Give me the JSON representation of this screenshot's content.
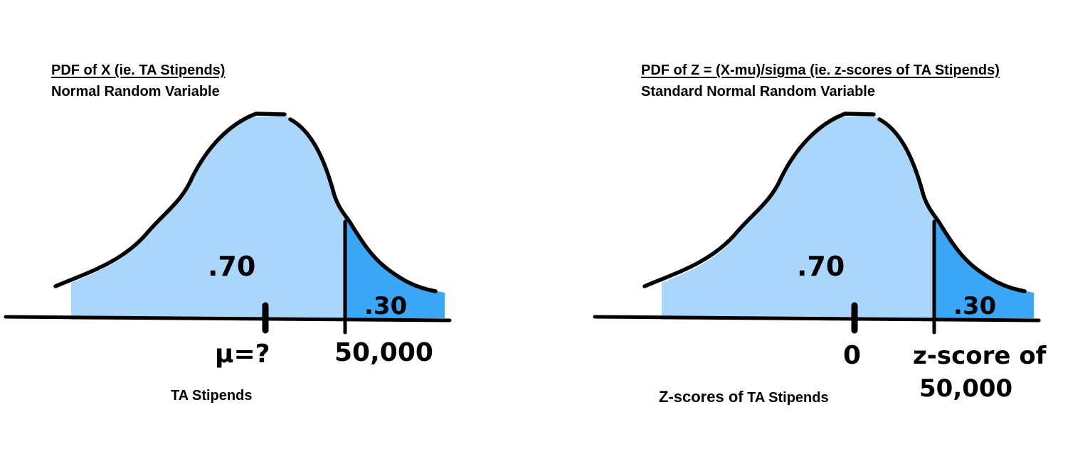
{
  "left_panel": {
    "title": "PDF of X (ie. TA Stipends)",
    "subtitle": "Normal Random Variable",
    "caption": "TA Stipends",
    "area_left_label": ".70",
    "area_right_label": ".30",
    "mean_label": "μ=?",
    "cutoff_label": "50,000"
  },
  "right_panel": {
    "title": "PDF of Z = (X-mu)/sigma (ie. z-scores of TA Stipends)",
    "subtitle": "Standard Normal Random Variable",
    "caption_part1": "Z-scores of",
    "caption_part2": "TA Stipends",
    "area_left_label": ".70",
    "area_right_label": ".30",
    "mean_label": "0",
    "cutoff_label_line1": "z-score of",
    "cutoff_label_line2": "50,000"
  },
  "colors": {
    "light_fill": "#a9d6fa",
    "dark_fill": "#3aa6f5",
    "ink": "#000000"
  }
}
